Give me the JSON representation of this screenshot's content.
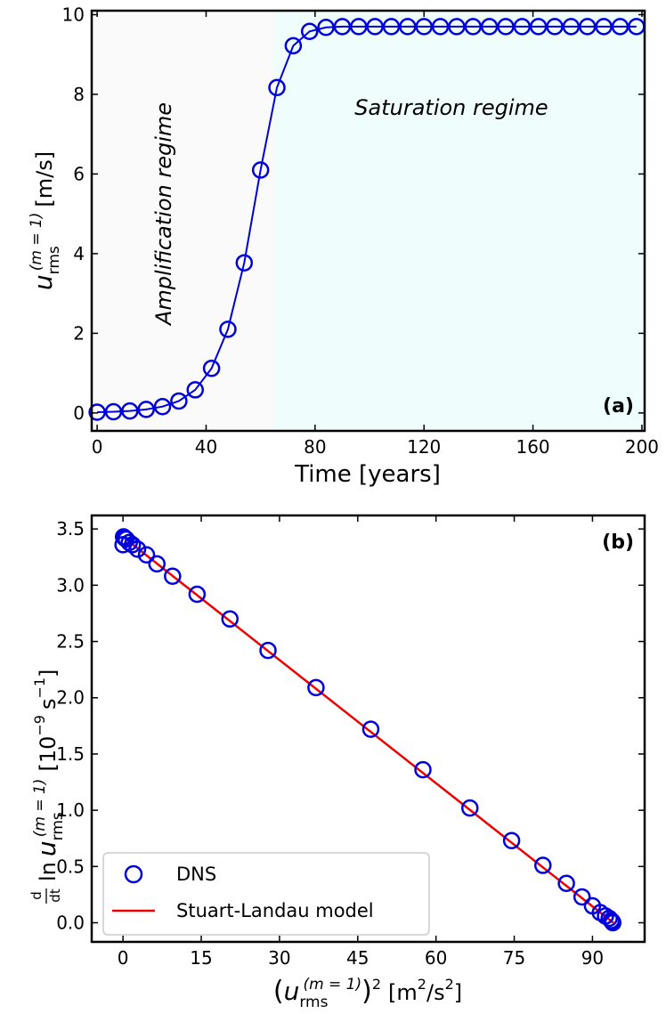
{
  "chart_data": [
    {
      "type": "line",
      "panel_label": "(a)",
      "xlabel": "Time [years]",
      "ylabel": "u_rms^(m=1) [m/s]",
      "ylabel_parts": {
        "main": "u",
        "sub": "rms",
        "sup": "(m = 1)",
        "unit": "[m/s]"
      },
      "xlim": [
        -2,
        201
      ],
      "ylim": [
        -0.45,
        10.1
      ],
      "xticks": [
        0,
        40,
        80,
        120,
        160,
        200
      ],
      "yticks": [
        0,
        2,
        4,
        6,
        8,
        10
      ],
      "marker": "open-circle",
      "series_color": "#0000dd",
      "regions": [
        {
          "name": "Amplification regime",
          "x_range": [
            -2,
            65
          ],
          "color": "#fafafa"
        },
        {
          "name": "Saturation regime",
          "x_range": [
            65,
            201
          ],
          "color": "#effdfd"
        }
      ],
      "series": [
        {
          "x": [
            0,
            6,
            12,
            18,
            24,
            30,
            36,
            42,
            48,
            54,
            60,
            66,
            72,
            78,
            84,
            90,
            96,
            102,
            108,
            114,
            120,
            126,
            132,
            138,
            144,
            150,
            156,
            162,
            168,
            174,
            180,
            186,
            192,
            198
          ],
          "y": [
            0.02,
            0.03,
            0.05,
            0.09,
            0.16,
            0.3,
            0.58,
            1.12,
            2.1,
            3.77,
            6.1,
            8.17,
            9.22,
            9.58,
            9.68,
            9.7,
            9.7,
            9.7,
            9.7,
            9.7,
            9.7,
            9.7,
            9.7,
            9.7,
            9.7,
            9.7,
            9.7,
            9.7,
            9.7,
            9.7,
            9.7,
            9.7,
            9.7,
            9.7
          ]
        }
      ]
    },
    {
      "type": "scatter",
      "panel_label": "(b)",
      "xlabel": "(u_rms^(m=1))^2 [m^2/s^2]",
      "xlabel_parts": {
        "main": "u",
        "sub": "rms",
        "sup": "(m = 1)",
        "unit_a": "[m",
        "unit_b": "/s",
        "unit_c": "]"
      },
      "ylabel": "d/dt ln u_rms^(m=1) [10^-9 s^-1]",
      "ylabel_parts": {
        "d": "d",
        "dt": "dt",
        "ln": "ln",
        "main": "u",
        "sub": "rms",
        "sup": "(m = 1)",
        "unit_a": "[10",
        "unit_exp": "−9",
        "unit_b": "s",
        "unit_exp2": "−1",
        "unit_c": "]"
      },
      "xlim": [
        -6,
        100
      ],
      "ylim": [
        -0.17,
        3.62
      ],
      "xticks": [
        0,
        15,
        30,
        45,
        60,
        75,
        90
      ],
      "yticks": [
        0.0,
        0.5,
        1.0,
        1.5,
        2.0,
        2.5,
        3.0,
        3.5
      ],
      "ytick_labels": [
        "0.0",
        "0.5",
        "1.0",
        "1.5",
        "2.0",
        "2.5",
        "3.0",
        "3.5"
      ],
      "legend_position": "lower-left",
      "series": [
        {
          "name": "DNS",
          "marker": "open-circle",
          "color": "#0000dd",
          "x": [
            0.0,
            0.1,
            0.3,
            0.6,
            1.2,
            1.8,
            2.8,
            4.5,
            6.5,
            9.5,
            14.2,
            20.5,
            27.8,
            37.0,
            47.5,
            57.5,
            66.5,
            74.5,
            80.5,
            85.0,
            88.0,
            90.0,
            91.5,
            92.5,
            93.2,
            93.6,
            93.8,
            93.9
          ],
          "y": [
            3.36,
            3.43,
            3.42,
            3.41,
            3.38,
            3.36,
            3.32,
            3.27,
            3.19,
            3.08,
            2.92,
            2.7,
            2.42,
            2.09,
            1.72,
            1.36,
            1.02,
            0.73,
            0.51,
            0.35,
            0.23,
            0.15,
            0.09,
            0.06,
            0.04,
            0.02,
            0.01,
            0.0
          ]
        },
        {
          "name": "Stuart-Landau model",
          "marker": "none",
          "color": "#ee0000",
          "x": [
            0.0,
            94.0
          ],
          "y": [
            3.43,
            0.0
          ]
        }
      ]
    }
  ]
}
